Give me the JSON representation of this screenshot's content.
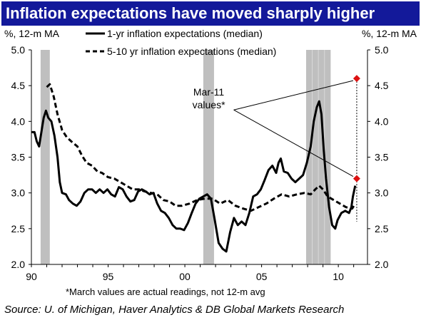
{
  "title": "Inflation expectations have moved sharply higher",
  "footnote": "*March values are actual readings, not 12-m avg",
  "source": "Source: U. of Michigan, Haver Analytics & DB Global Markets Research",
  "colors": {
    "title_bg": "#13199a",
    "recession": "#bfbfbf",
    "marker": "#dd1111",
    "line": "#000000"
  },
  "chart_data": {
    "type": "line",
    "ylabel_left": "%, 12-m MA",
    "ylabel_right": "%, 12-m MA",
    "xlim": [
      1990,
      2011.9
    ],
    "ylim": [
      2.0,
      5.0
    ],
    "x_ticks": [
      {
        "x": 1990,
        "label": "90"
      },
      {
        "x": 1995,
        "label": "95"
      },
      {
        "x": 2000,
        "label": "00"
      },
      {
        "x": 2005,
        "label": "05"
      },
      {
        "x": 2010,
        "label": "10"
      }
    ],
    "y_ticks": [
      {
        "value": 2.0,
        "label": "2.0"
      },
      {
        "value": 2.5,
        "label": "2.5"
      },
      {
        "value": 3.0,
        "label": "3.0"
      },
      {
        "value": 3.5,
        "label": "3.5"
      },
      {
        "value": 4.0,
        "label": "4.0"
      },
      {
        "value": 4.5,
        "label": "4.5"
      },
      {
        "value": 5.0,
        "label": "5.0"
      }
    ],
    "recessions": [
      [
        1990.6,
        1991.2
      ],
      [
        2001.2,
        2001.9
      ],
      [
        2007.9,
        2009.5
      ]
    ],
    "legend_position": "top-center",
    "series": [
      {
        "name": "1-yr inflation expectations (median)",
        "style": "solid",
        "points": [
          [
            1990.0,
            3.85
          ],
          [
            1990.2,
            3.85
          ],
          [
            1990.35,
            3.72
          ],
          [
            1990.5,
            3.65
          ],
          [
            1990.65,
            3.85
          ],
          [
            1990.8,
            4.05
          ],
          [
            1990.95,
            4.15
          ],
          [
            1991.1,
            4.05
          ],
          [
            1991.3,
            4.0
          ],
          [
            1991.5,
            3.8
          ],
          [
            1991.7,
            3.5
          ],
          [
            1991.85,
            3.15
          ],
          [
            1992.0,
            3.0
          ],
          [
            1992.25,
            2.98
          ],
          [
            1992.45,
            2.9
          ],
          [
            1992.7,
            2.85
          ],
          [
            1992.95,
            2.82
          ],
          [
            1993.2,
            2.88
          ],
          [
            1993.45,
            3.0
          ],
          [
            1993.7,
            3.05
          ],
          [
            1993.95,
            3.05
          ],
          [
            1994.2,
            3.0
          ],
          [
            1994.45,
            3.05
          ],
          [
            1994.7,
            3.0
          ],
          [
            1994.95,
            3.05
          ],
          [
            1995.2,
            2.98
          ],
          [
            1995.45,
            2.95
          ],
          [
            1995.7,
            3.08
          ],
          [
            1995.95,
            3.05
          ],
          [
            1996.2,
            2.95
          ],
          [
            1996.45,
            2.88
          ],
          [
            1996.7,
            2.9
          ],
          [
            1996.95,
            3.02
          ],
          [
            1997.2,
            3.05
          ],
          [
            1997.45,
            3.02
          ],
          [
            1997.7,
            2.98
          ],
          [
            1997.95,
            3.0
          ],
          [
            1998.2,
            2.85
          ],
          [
            1998.45,
            2.75
          ],
          [
            1998.7,
            2.72
          ],
          [
            1998.95,
            2.65
          ],
          [
            1999.2,
            2.55
          ],
          [
            1999.45,
            2.5
          ],
          [
            1999.7,
            2.5
          ],
          [
            1999.95,
            2.48
          ],
          [
            2000.2,
            2.58
          ],
          [
            2000.45,
            2.72
          ],
          [
            2000.7,
            2.85
          ],
          [
            2000.95,
            2.92
          ],
          [
            2001.2,
            2.95
          ],
          [
            2001.45,
            2.98
          ],
          [
            2001.7,
            2.92
          ],
          [
            2001.95,
            2.62
          ],
          [
            2002.2,
            2.3
          ],
          [
            2002.45,
            2.22
          ],
          [
            2002.7,
            2.18
          ],
          [
            2002.95,
            2.45
          ],
          [
            2003.2,
            2.65
          ],
          [
            2003.45,
            2.55
          ],
          [
            2003.7,
            2.6
          ],
          [
            2003.95,
            2.55
          ],
          [
            2004.2,
            2.72
          ],
          [
            2004.45,
            2.95
          ],
          [
            2004.7,
            2.98
          ],
          [
            2004.95,
            3.05
          ],
          [
            2005.2,
            3.18
          ],
          [
            2005.45,
            3.32
          ],
          [
            2005.7,
            3.38
          ],
          [
            2005.95,
            3.28
          ],
          [
            2006.1,
            3.42
          ],
          [
            2006.25,
            3.48
          ],
          [
            2006.45,
            3.3
          ],
          [
            2006.7,
            3.28
          ],
          [
            2006.95,
            3.2
          ],
          [
            2007.2,
            3.15
          ],
          [
            2007.45,
            3.2
          ],
          [
            2007.7,
            3.25
          ],
          [
            2007.95,
            3.42
          ],
          [
            2008.2,
            3.65
          ],
          [
            2008.4,
            4.0
          ],
          [
            2008.6,
            4.2
          ],
          [
            2008.75,
            4.28
          ],
          [
            2008.9,
            4.1
          ],
          [
            2009.05,
            3.6
          ],
          [
            2009.2,
            3.2
          ],
          [
            2009.4,
            2.8
          ],
          [
            2009.6,
            2.55
          ],
          [
            2009.8,
            2.5
          ],
          [
            2009.95,
            2.62
          ],
          [
            2010.2,
            2.72
          ],
          [
            2010.45,
            2.75
          ],
          [
            2010.7,
            2.72
          ],
          [
            2010.85,
            2.8
          ],
          [
            2010.95,
            2.95
          ],
          [
            2011.05,
            3.05
          ],
          [
            2011.1,
            3.1
          ]
        ]
      },
      {
        "name": "5-10 yr inflation expectations (median)",
        "style": "dashed",
        "points": [
          [
            1991.0,
            4.48
          ],
          [
            1991.2,
            4.52
          ],
          [
            1991.45,
            4.35
          ],
          [
            1991.7,
            4.1
          ],
          [
            1992.0,
            3.88
          ],
          [
            1992.3,
            3.78
          ],
          [
            1992.6,
            3.72
          ],
          [
            1993.0,
            3.65
          ],
          [
            1993.3,
            3.52
          ],
          [
            1993.6,
            3.42
          ],
          [
            1993.95,
            3.38
          ],
          [
            1994.3,
            3.3
          ],
          [
            1994.6,
            3.28
          ],
          [
            1995.0,
            3.22
          ],
          [
            1995.4,
            3.2
          ],
          [
            1995.8,
            3.15
          ],
          [
            1996.2,
            3.1
          ],
          [
            1996.6,
            3.05
          ],
          [
            1997.0,
            3.05
          ],
          [
            1997.4,
            3.02
          ],
          [
            1997.8,
            3.0
          ],
          [
            1998.2,
            2.98
          ],
          [
            1998.6,
            2.9
          ],
          [
            1999.0,
            2.88
          ],
          [
            1999.4,
            2.82
          ],
          [
            1999.8,
            2.82
          ],
          [
            2000.3,
            2.85
          ],
          [
            2000.8,
            2.9
          ],
          [
            2001.3,
            2.92
          ],
          [
            2001.8,
            2.92
          ],
          [
            2002.3,
            2.85
          ],
          [
            2002.8,
            2.9
          ],
          [
            2003.3,
            2.82
          ],
          [
            2003.8,
            2.78
          ],
          [
            2004.3,
            2.75
          ],
          [
            2004.8,
            2.8
          ],
          [
            2005.3,
            2.85
          ],
          [
            2005.8,
            2.92
          ],
          [
            2006.3,
            2.98
          ],
          [
            2006.8,
            2.95
          ],
          [
            2007.3,
            2.98
          ],
          [
            2007.8,
            3.0
          ],
          [
            2008.2,
            2.98
          ],
          [
            2008.5,
            3.05
          ],
          [
            2008.75,
            3.1
          ],
          [
            2009.0,
            3.05
          ],
          [
            2009.3,
            2.95
          ],
          [
            2009.7,
            2.9
          ],
          [
            2010.1,
            2.85
          ],
          [
            2010.5,
            2.8
          ],
          [
            2010.9,
            2.78
          ],
          [
            2011.1,
            2.85
          ]
        ]
      }
    ],
    "markers": [
      {
        "x": 2011.2,
        "y": 4.6
      },
      {
        "x": 2011.2,
        "y": 3.2
      }
    ],
    "annotation": {
      "text_lines": [
        "Mar-11",
        "values*"
      ],
      "x": 1999.0,
      "y": 4.3
    }
  }
}
